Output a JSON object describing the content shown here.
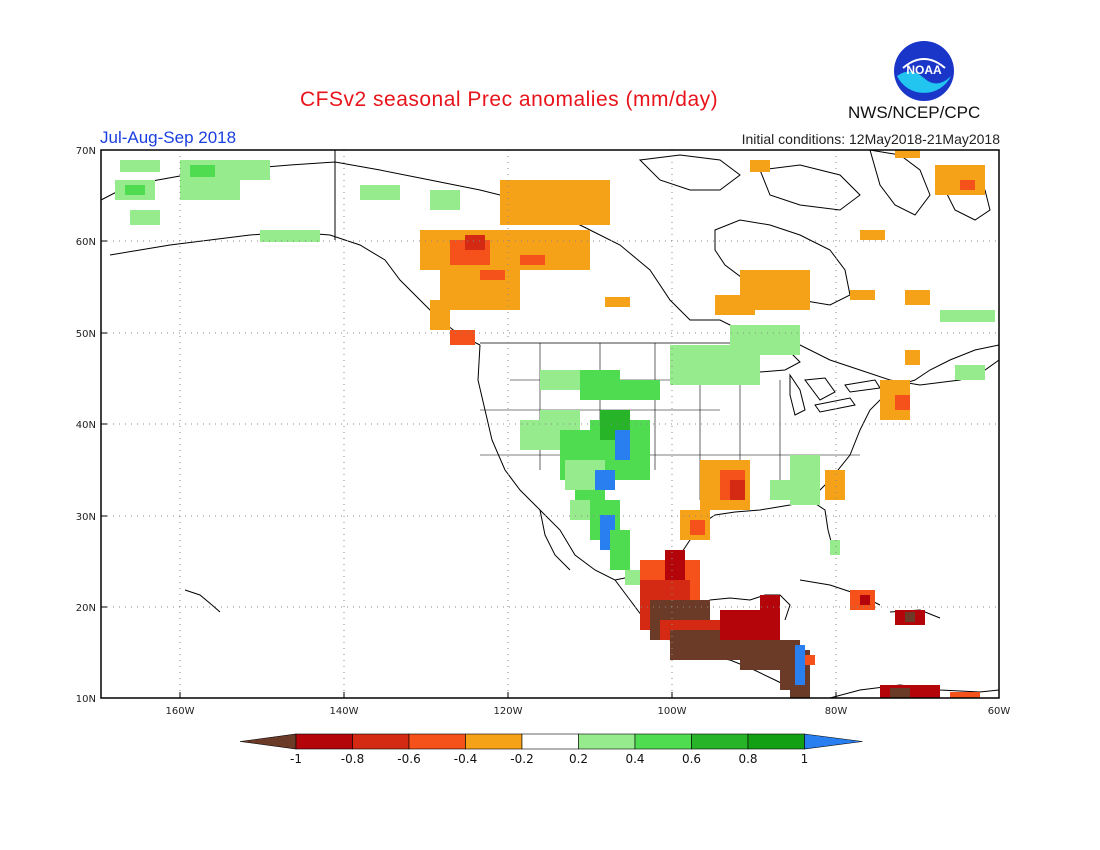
{
  "header": {
    "title": "CFSv2 seasonal Prec anomalies (mm/day)",
    "season": "Jul-Aug-Sep 2018",
    "initial_conditions": "Initial conditions: 12May2018-21May2018",
    "agency": "NWS/NCEP/CPC",
    "logo_text": "NOAA"
  },
  "map": {
    "lon_range": [
      -172,
      -60
    ],
    "lat_range": [
      10,
      70
    ],
    "lat_ticks": [
      "70N",
      "60N",
      "50N",
      "40N",
      "30N",
      "20N",
      "10N"
    ],
    "lon_ticks": [
      "160W",
      "140W",
      "120W",
      "100W",
      "80W",
      "60W"
    ],
    "grid": "dotted"
  },
  "colorbar": {
    "labels": [
      "-1",
      "-0.8",
      "-0.6",
      "-0.4",
      "-0.2",
      "0.2",
      "0.4",
      "0.6",
      "0.8",
      "1"
    ],
    "colors": {
      "lt_m1": "#6b3b28",
      "m1_m08": "#b4050a",
      "m08_m06": "#d42a14",
      "m06_m04": "#f5511b",
      "m04_m02": "#f5a218",
      "m02_02": "#ffffff",
      "p02_04": "#96ec8c",
      "p04_06": "#50dc50",
      "p06_08": "#28b428",
      "p08_1": "#14a014",
      "gt_1": "#2a7ff0"
    }
  }
}
